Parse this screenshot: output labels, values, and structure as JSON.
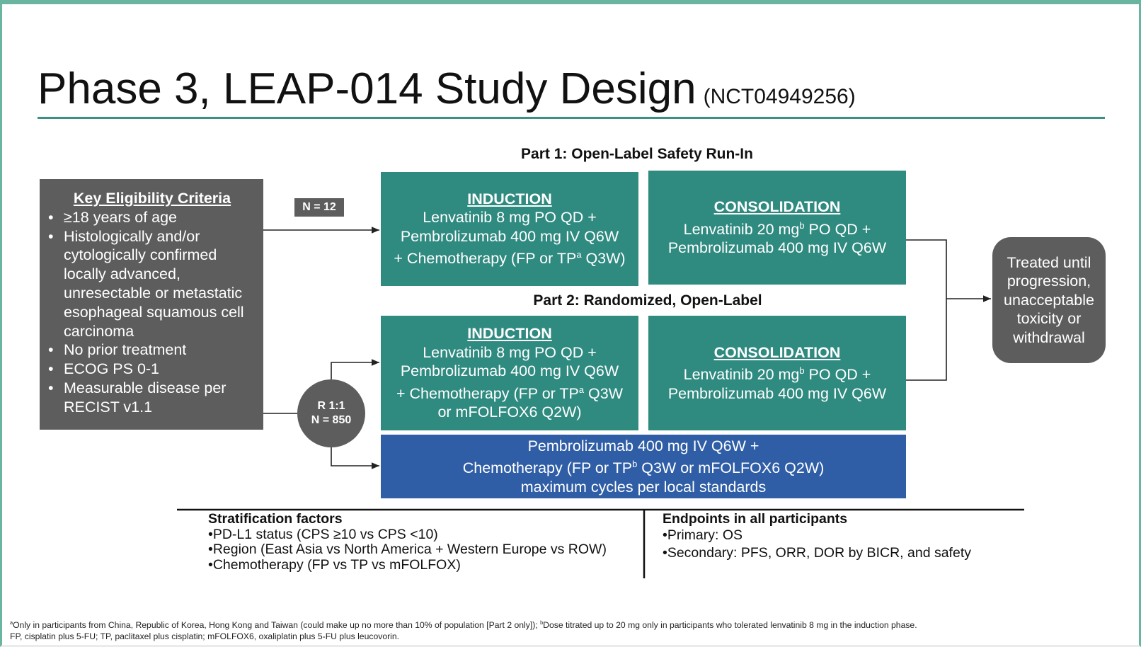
{
  "title": {
    "main": "Phase 3, LEAP-014 Study Design",
    "trial_id": "(NCT04949256)"
  },
  "part1_heading": "Part 1: Open-Label Safety Run-In",
  "part2_heading": "Part 2: Randomized, Open-Label",
  "eligibility": {
    "heading": "Key Eligibility Criteria",
    "items": [
      "≥18 years of age",
      "Histologically and/or cytologically confirmed locally advanced, unresectable or metastatic esophageal squamous cell carcinoma",
      "No prior treatment",
      "ECOG PS 0-1",
      "Measurable disease per RECIST v1.1"
    ]
  },
  "n12_badge": "N = 12",
  "randomization": {
    "ratio": "R 1:1",
    "n": "N = 850"
  },
  "part1": {
    "induction": {
      "heading": "INDUCTION",
      "line1": "Lenvatinib 8 mg PO QD +",
      "line2": "Pembrolizumab 400 mg IV Q6W",
      "line3a": "+ Chemotherapy (FP or TP",
      "sup": "a",
      "line3b": " Q3W)"
    },
    "consolidation": {
      "heading": "CONSOLIDATION",
      "line1a": "Lenvatinib 20 mg",
      "sup": "b",
      "line1b": " PO QD +",
      "line2": "Pembrolizumab 400 mg IV Q6W"
    }
  },
  "part2": {
    "induction": {
      "heading": "INDUCTION",
      "line1": "Lenvatinib 8 mg PO QD +",
      "line2": "Pembrolizumab 400 mg IV Q6W",
      "line3a": "+ Chemotherapy (FP or TP",
      "sup": "a",
      "line3b": " Q3W",
      "line4": "or mFOLFOX6 Q2W)"
    },
    "consolidation": {
      "heading": "CONSOLIDATION",
      "line1a": "Lenvatinib 20 mg",
      "sup": "b",
      "line1b": " PO QD +",
      "line2": "Pembrolizumab 400 mg IV Q6W"
    },
    "control": {
      "line1": "Pembrolizumab 400 mg IV Q6W +",
      "line2a": "Chemotherapy (FP or TP",
      "sup": "b",
      "line2b": " Q3W or mFOLFOX6 Q2W)",
      "line3": "maximum cycles per local standards"
    }
  },
  "treated": "Treated until progression, unacceptable toxicity or withdrawal",
  "stratification": {
    "heading": "Stratification factors",
    "items": [
      "PD-L1 status (CPS ≥10 vs CPS <10)",
      "Region (East Asia vs North America + Western Europe vs ROW)",
      "Chemotherapy (FP vs TP vs mFOLFOX)"
    ]
  },
  "endpoints": {
    "heading": "Endpoints in all participants",
    "items": [
      "Primary: OS",
      "Secondary: PFS, ORR, DOR by BICR, and safety"
    ]
  },
  "footnotes": {
    "line1a_sup": "a",
    "line1a": "Only in participants from China, Republic of Korea, Hong Kong and Taiwan (could make up no more than 10% of population [Part 2 only]); ",
    "line1b_sup": "b",
    "line1b": "Dose titrated up to 20 mg only in participants who tolerated lenvatinib 8 mg in the induction phase.",
    "line2": "FP, cisplatin plus 5-FU; TP, paclitaxel plus cisplatin; mFOLFOX6, oxaliplatin plus 5-FU plus leucovorin."
  },
  "colors": {
    "teal_box": "#2f8a80",
    "blue_box": "#2f5ea6",
    "gray_box": "#5d5d5d",
    "accent_border": "#6ab5a0"
  }
}
